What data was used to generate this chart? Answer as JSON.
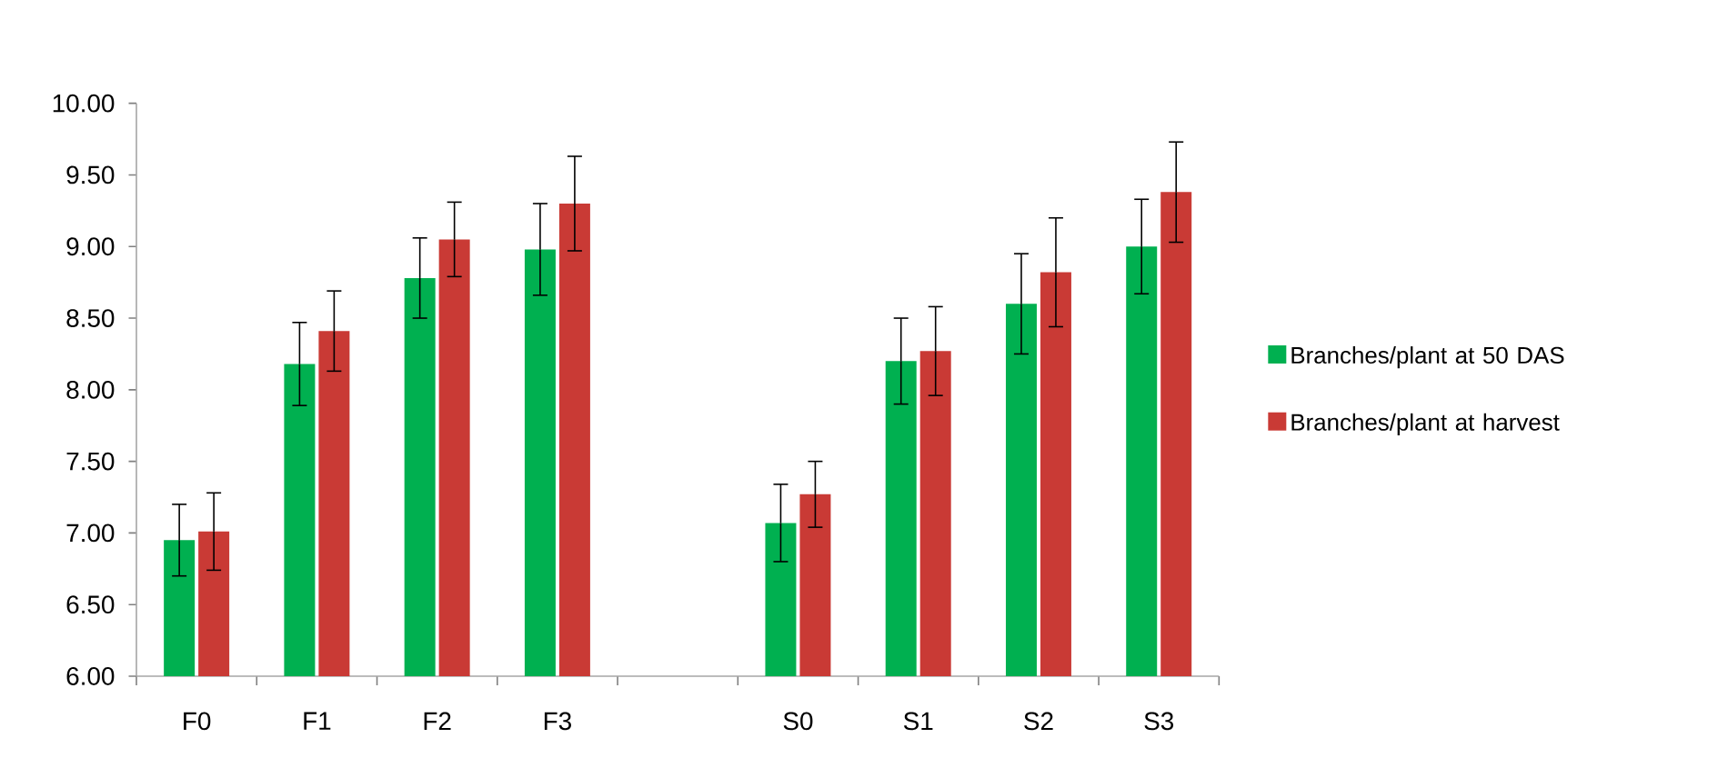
{
  "chart_data": {
    "type": "bar",
    "categories": [
      "F0",
      "F1",
      "F2",
      "F3",
      null,
      "S0",
      "S1",
      "S2",
      "S3"
    ],
    "series": [
      {
        "name": "Branches/plant at 50 DAS",
        "color": "#00b050",
        "values": [
          6.95,
          8.18,
          8.78,
          8.98,
          null,
          7.07,
          8.2,
          8.6,
          9.0
        ],
        "errors": [
          0.25,
          0.29,
          0.28,
          0.32,
          null,
          0.27,
          0.3,
          0.35,
          0.33
        ]
      },
      {
        "name": "Branches/plant at harvest",
        "color": "#c93a35",
        "values": [
          7.01,
          8.41,
          9.05,
          9.3,
          null,
          7.27,
          8.27,
          8.82,
          9.38
        ],
        "errors": [
          0.27,
          0.28,
          0.26,
          0.33,
          null,
          0.23,
          0.31,
          0.38,
          0.35
        ]
      }
    ],
    "ylim": [
      6,
      10
    ],
    "yticks": [
      {
        "value": 6,
        "label": "6.00"
      },
      {
        "value": 6.5,
        "label": "6.50"
      },
      {
        "value": 7,
        "label": "7.00"
      },
      {
        "value": 7.5,
        "label": "7.50"
      },
      {
        "value": 8,
        "label": "8.00"
      },
      {
        "value": 8.5,
        "label": "8.50"
      },
      {
        "value": 9,
        "label": "9.00"
      },
      {
        "value": 9.5,
        "label": "9.50"
      },
      {
        "value": 10,
        "label": "10.00"
      }
    ],
    "grid": false,
    "legend": "right"
  }
}
